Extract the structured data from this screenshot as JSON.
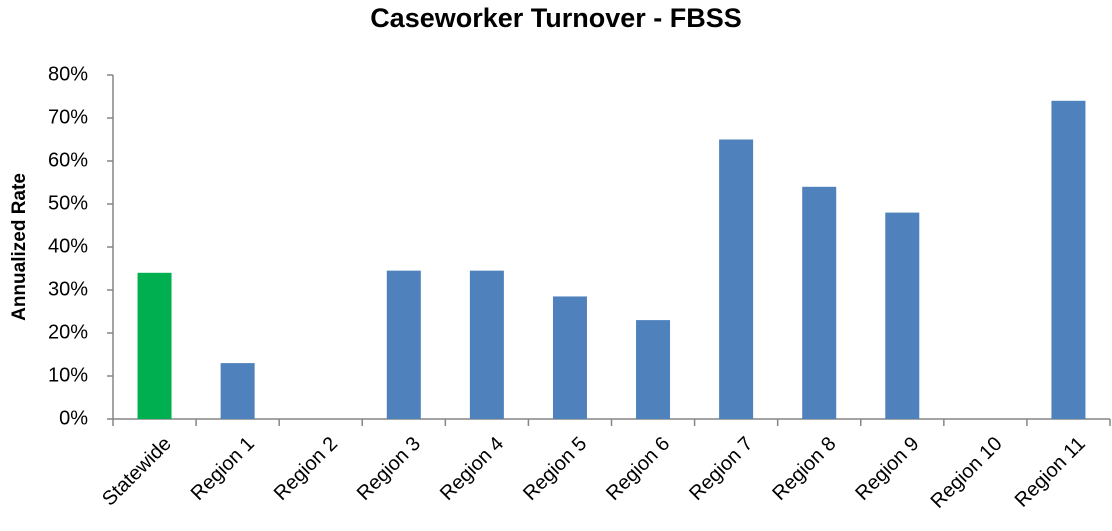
{
  "chart_data": {
    "type": "bar",
    "title": "Caseworker Turnover - FBSS",
    "y_label": "Annualized Rate",
    "categories": [
      "Statewide",
      "Region 1",
      "Region 2",
      "Region 3",
      "Region 4",
      "Region 5",
      "Region 6",
      "Region 7",
      "Region 8",
      "Region 9",
      "Region 10",
      "Region 11"
    ],
    "values": [
      34,
      13,
      0,
      34.5,
      34.5,
      28.5,
      23,
      65,
      54,
      48,
      0,
      74
    ],
    "colors": [
      "#00b050",
      "#4f81bd",
      "#4f81bd",
      "#4f81bd",
      "#4f81bd",
      "#4f81bd",
      "#4f81bd",
      "#4f81bd",
      "#4f81bd",
      "#4f81bd",
      "#4f81bd",
      "#4f81bd"
    ],
    "ylim": [
      0,
      80
    ],
    "yticks": [
      {
        "value": 0,
        "label": "0%"
      },
      {
        "value": 10,
        "label": "10%"
      },
      {
        "value": 20,
        "label": "20%"
      },
      {
        "value": 30,
        "label": "30%"
      },
      {
        "value": 40,
        "label": "40%"
      },
      {
        "value": 50,
        "label": "50%"
      },
      {
        "value": 60,
        "label": "60%"
      },
      {
        "value": 70,
        "label": "70%"
      },
      {
        "value": 80,
        "label": "80%"
      }
    ],
    "grid": false
  }
}
